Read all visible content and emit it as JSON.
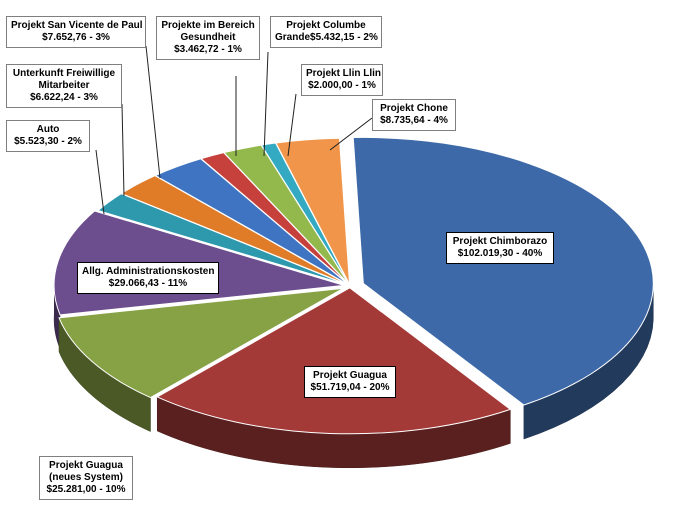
{
  "chart_data": {
    "type": "pie",
    "title": "",
    "slices": [
      {
        "name": "Projekt Chimborazo",
        "value_label": "$102.019,30  -  40%",
        "value": 102019.3,
        "percent": 40,
        "color": "#3d69a8"
      },
      {
        "name": "Projekt Guagua",
        "value_label": "$51.719,04  - 20%",
        "value": 51719.04,
        "percent": 20,
        "color": "#a33a38"
      },
      {
        "name": "Projekt Guagua (neues System)",
        "name_lines": [
          "Projekt Guagua",
          "(neues  System)"
        ],
        "value_label": "$25.281,00  - 10%",
        "value": 25281.0,
        "percent": 10,
        "color": "#86a245"
      },
      {
        "name": "Allg. Administrationskosten",
        "value_label": "$29.066,43  - 11%",
        "value": 29066.43,
        "percent": 11,
        "color": "#6c4d8e"
      },
      {
        "name": "Auto",
        "value_label": "$5.523,30  - 2%",
        "value": 5523.3,
        "percent": 2,
        "color": "#2e98ad"
      },
      {
        "name": "Unterkunft Freiwillige Mitarbeiter",
        "name_lines": [
          "Unterkunft Freiwillige",
          "Mitarbeiter"
        ],
        "value_label": "$6.622,24  - 3%",
        "value": 6622.24,
        "percent": 3,
        "color": "#e07b27"
      },
      {
        "name": "Projekt San Vicente de Paul",
        "value_label": "$7.652,76  - 3%",
        "value": 7652.76,
        "percent": 3,
        "color": "#3f74c2"
      },
      {
        "name": "Projekte im Bereich Gesundheit",
        "name_lines": [
          "Projekte im Bereich",
          "Gesundheit"
        ],
        "value_label": "$3.462,72  - 1%",
        "value": 3462.72,
        "percent": 1,
        "color": "#c6403c"
      },
      {
        "name": "Projekt Columbe Grande",
        "name_lines": [
          "Projekt Columbe",
          "Grande$5.432,15  - 2%"
        ],
        "value_label": "",
        "value": 5432.15,
        "percent": 2,
        "color": "#93b94c"
      },
      {
        "name": "Projekt Columbe Grande (purple)",
        "value_label": "",
        "value": 0,
        "percent": 0,
        "color": "#7b5ba3"
      },
      {
        "name": "Projekt Llin Llin",
        "value_label": "$2.000,00  - 1%",
        "value": 2000.0,
        "percent": 1,
        "color": "#33a9c2"
      },
      {
        "name": "Projekt Chone",
        "value_label": "$8.735,64  - 4%",
        "value": 8735.64,
        "percent": 4,
        "color": "#f0954a"
      }
    ]
  },
  "labels": {
    "chimborazo": {
      "line1": "Projekt Chimborazo",
      "line2": "$102.019,30  -  40%"
    },
    "guagua": {
      "line1": "Projekt Guagua",
      "line2": "$51.719,04  - 20%"
    },
    "guagua_neu": {
      "line1": "Projekt Guagua",
      "line2": "(neues  System)",
      "line3": "$25.281,00  - 10%"
    },
    "admin": {
      "line1": "Allg. Administrationskosten",
      "line2": "$29.066,43  - 11%"
    },
    "auto": {
      "line1": "Auto",
      "line2": "$5.523,30  - 2%"
    },
    "unterkunft": {
      "line1": "Unterkunft Freiwillige",
      "line2": "Mitarbeiter",
      "line3": "$6.622,24  - 3%"
    },
    "sanvicente": {
      "line1": "Projekt San Vicente de Paul",
      "line2": "$7.652,76  - 3%"
    },
    "gesundheit": {
      "line1": "Projekte im Bereich",
      "line2": "Gesundheit",
      "line3": "$3.462,72  - 1%"
    },
    "columbe": {
      "line1": "Projekt Columbe",
      "line2": "Grande$5.432,15  - 2%"
    },
    "llinllin": {
      "line1": "Projekt Llin Llin",
      "line2": "$2.000,00  - 1%"
    },
    "chone": {
      "line1": "Projekt Chone",
      "line2": "$8.735,64  - 4%"
    }
  }
}
